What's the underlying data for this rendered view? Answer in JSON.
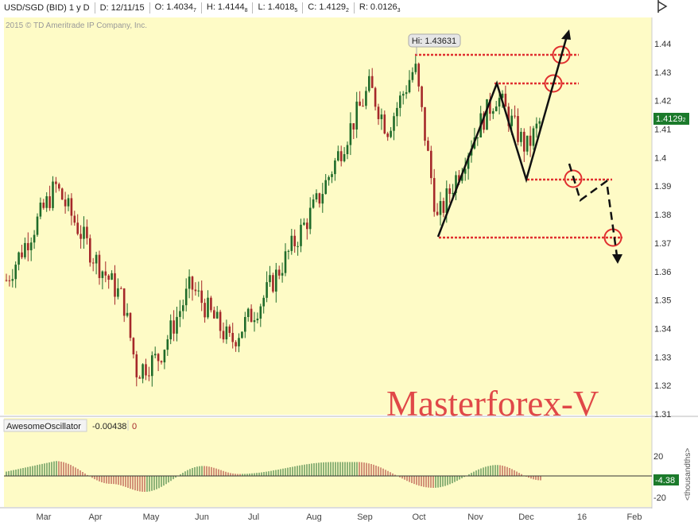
{
  "header": {
    "symbol": "USD/SGD (BID) 1 y D",
    "date": "D: 12/11/15",
    "open": "O: 1.4034",
    "open_sub": "7",
    "high": "H: 1.4144",
    "high_sub": "8",
    "low": "L: 1.4018",
    "low_sub": "5",
    "close": "C: 1.4129",
    "close_sub": "2",
    "range": "R: 0.0126",
    "range_sub": "3",
    "copyright": "2015 © TD Ameritrade IP Company, Inc."
  },
  "price_panel": {
    "hi_label": "Hi: 1.43631",
    "current_price": "1.4129",
    "current_price_sub": "2",
    "watermark": "Masterforex-V",
    "colors": {
      "background": "#fefbc6",
      "up": "#1f6b2a",
      "down": "#a5282a",
      "annotation": "#e03030",
      "badge": "#1b7a2b"
    }
  },
  "oscillator": {
    "title": "AwesomeOscillator",
    "value": "-0.00438",
    "zero": "0",
    "current_badge": "-4.38",
    "units_label": "<thousandths>",
    "y_ticks": [
      "20",
      "-20"
    ]
  },
  "x_axis": {
    "labels": [
      "Mar",
      "Apr",
      "May",
      "Jun",
      "Jul",
      "Aug",
      "Sep",
      "Oct",
      "Nov",
      "Dec",
      "16",
      "Feb"
    ]
  },
  "chart_data": {
    "type": "candlestick",
    "symbol": "USD/SGD (BID)",
    "period": "1 y D",
    "y_ticks": [
      "1.44",
      "1.43",
      "1.42",
      "1.41",
      "1.4",
      "1.39",
      "1.38",
      "1.37",
      "1.36",
      "1.35",
      "1.34",
      "1.33",
      "1.32",
      "1.31"
    ],
    "ylim": [
      1.31,
      1.445
    ],
    "month_labels": [
      "Mar",
      "Apr",
      "May",
      "Jun",
      "Jul",
      "Aug",
      "Sep",
      "Oct",
      "Nov",
      "Dec",
      "16",
      "Feb"
    ],
    "close_path": [
      {
        "month": "Mar",
        "close": 1.357
      },
      {
        "month": "Mar",
        "close": 1.39
      },
      {
        "month": "Apr",
        "close": 1.365
      },
      {
        "month": "Apr",
        "close": 1.35
      },
      {
        "month": "May",
        "close": 1.325
      },
      {
        "month": "May",
        "close": 1.33
      },
      {
        "month": "Jun",
        "close": 1.355
      },
      {
        "month": "Jun",
        "close": 1.335
      },
      {
        "month": "Jul",
        "close": 1.35
      },
      {
        "month": "Jul",
        "close": 1.36
      },
      {
        "month": "Aug",
        "close": 1.385
      },
      {
        "month": "Aug",
        "close": 1.41
      },
      {
        "month": "Sep",
        "close": 1.425
      },
      {
        "month": "Sep",
        "close": 1.41
      },
      {
        "month": "Oct",
        "close": 1.432
      },
      {
        "month": "Oct",
        "close": 1.378
      },
      {
        "month": "Nov",
        "close": 1.41
      },
      {
        "month": "Nov",
        "close": 1.422
      },
      {
        "month": "Dec",
        "close": 1.403
      },
      {
        "month": "Dec",
        "close": 1.4129
      }
    ],
    "high_marker": 1.43631,
    "last_close": 1.41292,
    "levels": [
      1.436,
      1.426,
      1.3925,
      1.372
    ],
    "pattern_solid": [
      [
        "Oct",
        1.372
      ],
      [
        "Nov",
        1.426
      ],
      [
        "Dec",
        1.3925
      ],
      [
        "16",
        1.4455
      ]
    ],
    "pattern_dashed": [
      [
        "Dec",
        1.398
      ],
      [
        "16",
        1.3855
      ],
      [
        "16",
        1.3925
      ],
      [
        "16",
        1.364
      ]
    ],
    "oscillator": {
      "name": "AwesomeOscillator",
      "last": -0.00438,
      "ylim": [
        -25,
        25
      ],
      "y_ticks": [
        20,
        -20
      ],
      "waves": [
        {
          "month": "Mar",
          "value": 15
        },
        {
          "month": "Apr",
          "value": -8
        },
        {
          "month": "May",
          "value": -16
        },
        {
          "month": "Jun",
          "value": 10
        },
        {
          "month": "Jul",
          "value": 2
        },
        {
          "month": "Aug",
          "value": 14
        },
        {
          "month": "Sep",
          "value": 14
        },
        {
          "month": "Oct",
          "value": -12
        },
        {
          "month": "Nov",
          "value": 11
        },
        {
          "month": "Dec",
          "value": -4.38
        }
      ]
    }
  }
}
